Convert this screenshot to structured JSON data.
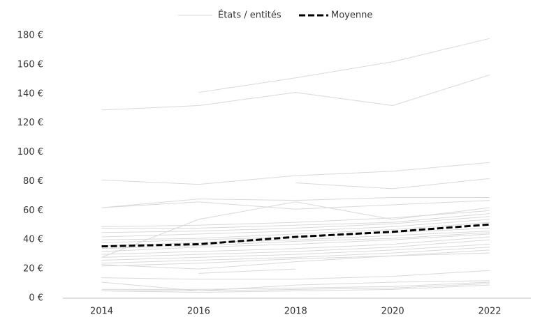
{
  "chart_data": {
    "type": "line",
    "x": [
      2014,
      2016,
      2018,
      2020,
      2022
    ],
    "xlim": [
      2013.2,
      2022.85
    ],
    "xticks": [
      2014,
      2016,
      2018,
      2020,
      2022
    ],
    "ylim": [
      0,
      180
    ],
    "yticks": [
      {
        "value": 0,
        "label": "0 €"
      },
      {
        "value": 20,
        "label": "20 €"
      },
      {
        "value": 40,
        "label": "40 €"
      },
      {
        "value": 60,
        "label": "60 €"
      },
      {
        "value": 80,
        "label": "80 €"
      },
      {
        "value": 100,
        "label": "100 €"
      },
      {
        "value": 120,
        "label": "120 €"
      },
      {
        "value": 140,
        "label": "140 €"
      },
      {
        "value": 160,
        "label": "160 €"
      },
      {
        "value": 180,
        "label": "180 €"
      }
    ],
    "legend": "top",
    "series": [
      {
        "name": "États / entités",
        "color": "#d9d9d9",
        "lines": [
          [
            null,
            141,
            151,
            162,
            178
          ],
          [
            129,
            132,
            141,
            132,
            153
          ],
          [
            81,
            78,
            84,
            87,
            93
          ],
          [
            null,
            null,
            79,
            75,
            82
          ],
          [
            62,
            68,
            67,
            69,
            69
          ],
          [
            62,
            66,
            61,
            64,
            67
          ],
          [
            28,
            54,
            66,
            54,
            62
          ],
          [
            49,
            50,
            52,
            55,
            60
          ],
          [
            48,
            48,
            50,
            52,
            58
          ],
          [
            45,
            46,
            48,
            51,
            56
          ],
          [
            42,
            44,
            46,
            49,
            54
          ],
          [
            40,
            41,
            44,
            47,
            52
          ],
          [
            38,
            40,
            42,
            45,
            48
          ],
          [
            36,
            38,
            40,
            43,
            46
          ],
          [
            34,
            36,
            39,
            41,
            45
          ],
          [
            32,
            35,
            37,
            40,
            44
          ],
          [
            30,
            32,
            34,
            37,
            42
          ],
          [
            28,
            30,
            32,
            35,
            40
          ],
          [
            26,
            28,
            30,
            33,
            37
          ],
          [
            24,
            26,
            28,
            31,
            35
          ],
          [
            23,
            20,
            25,
            29,
            33
          ],
          [
            22,
            24,
            27,
            29,
            31
          ],
          [
            null,
            17,
            20,
            null,
            null
          ],
          [
            14,
            13,
            13,
            15,
            19
          ],
          [
            11,
            5,
            9,
            11,
            12
          ],
          [
            6,
            6,
            7,
            8,
            11
          ],
          [
            5,
            5,
            6,
            7,
            10
          ],
          [
            5,
            4,
            5,
            6,
            9
          ]
        ]
      },
      {
        "name": "Moyenne",
        "color": "#000000",
        "dashed": true,
        "values": [
          35.5,
          37,
          42,
          45.5,
          50.5
        ]
      }
    ]
  }
}
